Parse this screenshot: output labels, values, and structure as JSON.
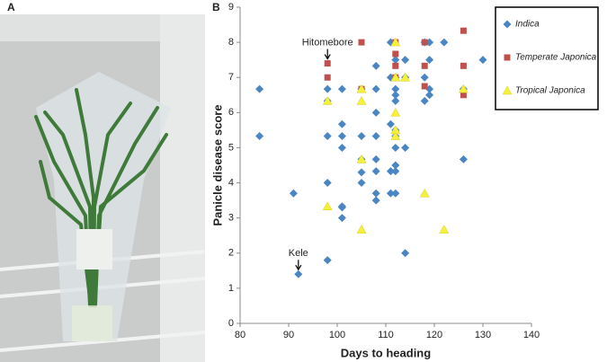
{
  "panel_labels": {
    "photo": "A",
    "chart": "B"
  },
  "chart_data": {
    "type": "scatter",
    "x_label": "Days to heading",
    "y_label": "Panicle disease score",
    "xlim": [
      80,
      140
    ],
    "xticks": [
      80,
      90,
      100,
      110,
      120,
      130,
      140
    ],
    "ylim": [
      0,
      9
    ],
    "yticks": [
      0,
      1,
      2,
      3,
      4,
      5,
      6,
      7,
      8,
      9
    ],
    "grid": false,
    "legend": "upper right",
    "series": [
      {
        "name": "Indica",
        "color": "#4a86c4",
        "marker": "diamond",
        "x": [
          84,
          84,
          91,
          92,
          98,
          98,
          98,
          98,
          98,
          101,
          101,
          101,
          101,
          101,
          101,
          101,
          105,
          105,
          105,
          105,
          105,
          108,
          108,
          108,
          108,
          108,
          108,
          108,
          108,
          111,
          111,
          111,
          111,
          111,
          112,
          112,
          112,
          112,
          112,
          112,
          112,
          112,
          112,
          112,
          112,
          114,
          114,
          114,
          114,
          118,
          118,
          118,
          119,
          119,
          119,
          119,
          122,
          126,
          126,
          130
        ],
        "values": [
          6.67,
          5.33,
          3.7,
          1.4,
          1.8,
          4.0,
          5.33,
          6.67,
          6.33,
          6.67,
          5.67,
          5.33,
          5.0,
          3.33,
          3.3,
          3.0,
          6.67,
          5.33,
          4.67,
          4.3,
          4.0,
          7.33,
          6.67,
          6.0,
          5.33,
          4.67,
          4.33,
          3.7,
          3.5,
          8.0,
          7.0,
          4.33,
          3.7,
          5.67,
          7.5,
          7.0,
          6.67,
          6.5,
          6.33,
          5.5,
          5.33,
          5.0,
          4.5,
          4.33,
          3.7,
          7.5,
          7.0,
          5.0,
          2.0,
          8.0,
          7.0,
          6.33,
          7.5,
          6.67,
          8.0,
          6.5,
          8.0,
          6.67,
          4.67,
          7.5
        ]
      },
      {
        "name": "Temperate Japonica",
        "color": "#c0504d",
        "marker": "square",
        "x": [
          98,
          98,
          105,
          105,
          112,
          112,
          112,
          112,
          118,
          118,
          118,
          126,
          126,
          126
        ],
        "values": [
          7.4,
          7.0,
          8.0,
          6.67,
          8.0,
          7.67,
          7.33,
          7.0,
          8.0,
          7.33,
          6.75,
          8.33,
          7.33,
          6.5
        ]
      },
      {
        "name": "Tropical Japonica",
        "color": "#f5f03c",
        "marker": "triangle",
        "x": [
          98,
          98,
          105,
          105,
          105,
          105,
          112,
          112,
          112,
          112,
          112,
          114,
          118,
          122,
          126
        ],
        "values": [
          6.33,
          3.33,
          6.67,
          6.33,
          4.67,
          2.67,
          8.0,
          7.0,
          6.0,
          5.33,
          5.5,
          7.0,
          3.7,
          2.67,
          6.67
        ]
      }
    ],
    "annotations": [
      {
        "text": "Hitomebore",
        "x": 98,
        "y": 7.4
      },
      {
        "text": "Kele",
        "x": 92,
        "y": 1.4
      }
    ]
  }
}
